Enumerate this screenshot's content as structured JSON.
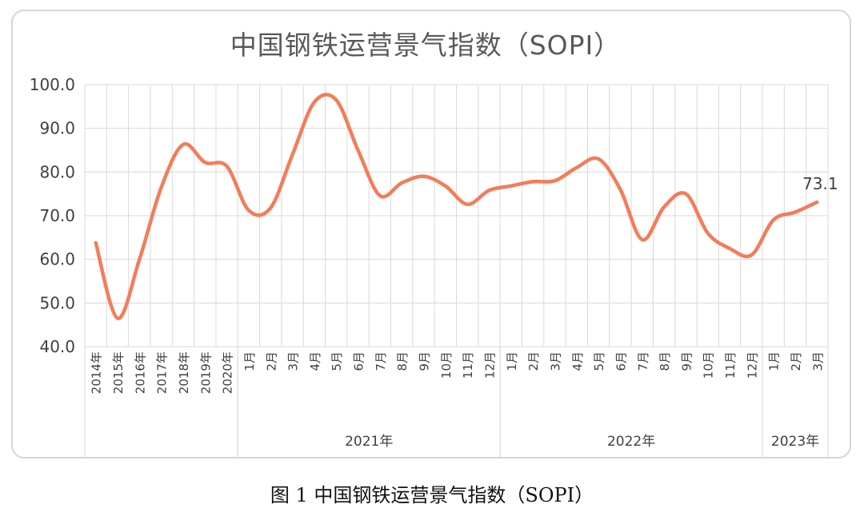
{
  "chart_data": {
    "type": "line",
    "title": "中国钢铁运营景气指数（SOPI）",
    "caption": "图 1  中国钢铁运营景气指数（SOPI）",
    "ylim": [
      40,
      100
    ],
    "yticks": [
      "40.0",
      "50.0",
      "60.0",
      "70.0",
      "80.0",
      "90.0",
      "100.0"
    ],
    "grid": true,
    "categories": [
      "2014年",
      "2015年",
      "2016年",
      "2017年",
      "2018年",
      "2019年",
      "2020年",
      "1月",
      "2月",
      "3月",
      "4月",
      "5月",
      "6月",
      "7月",
      "8月",
      "9月",
      "10月",
      "11月",
      "12月",
      "1月",
      "2月",
      "3月",
      "4月",
      "5月",
      "6月",
      "7月",
      "8月",
      "9月",
      "10月",
      "11月",
      "12月",
      "1月",
      "2月",
      "3月"
    ],
    "groups": [
      {
        "label": "",
        "start": 0,
        "end": 6
      },
      {
        "label": "2021年",
        "start": 7,
        "end": 18
      },
      {
        "label": "2022年",
        "start": 19,
        "end": 30
      },
      {
        "label": "2023年",
        "start": 31,
        "end": 33
      }
    ],
    "series": [
      {
        "name": "",
        "color": "#f47c5a",
        "values": [
          63.8,
          46.5,
          60.0,
          76.5,
          86.3,
          82.2,
          81.3,
          71.2,
          71.8,
          84.0,
          96.0,
          96.5,
          85.0,
          74.6,
          77.5,
          79.0,
          76.8,
          72.6,
          75.8,
          76.8,
          77.8,
          78.0,
          81.0,
          83.0,
          76.0,
          64.5,
          72.0,
          75.0,
          66.0,
          62.5,
          61.0,
          69.0,
          70.8,
          73.1
        ]
      }
    ],
    "data_labels": [
      {
        "index": 33,
        "text": "73.1"
      }
    ]
  }
}
